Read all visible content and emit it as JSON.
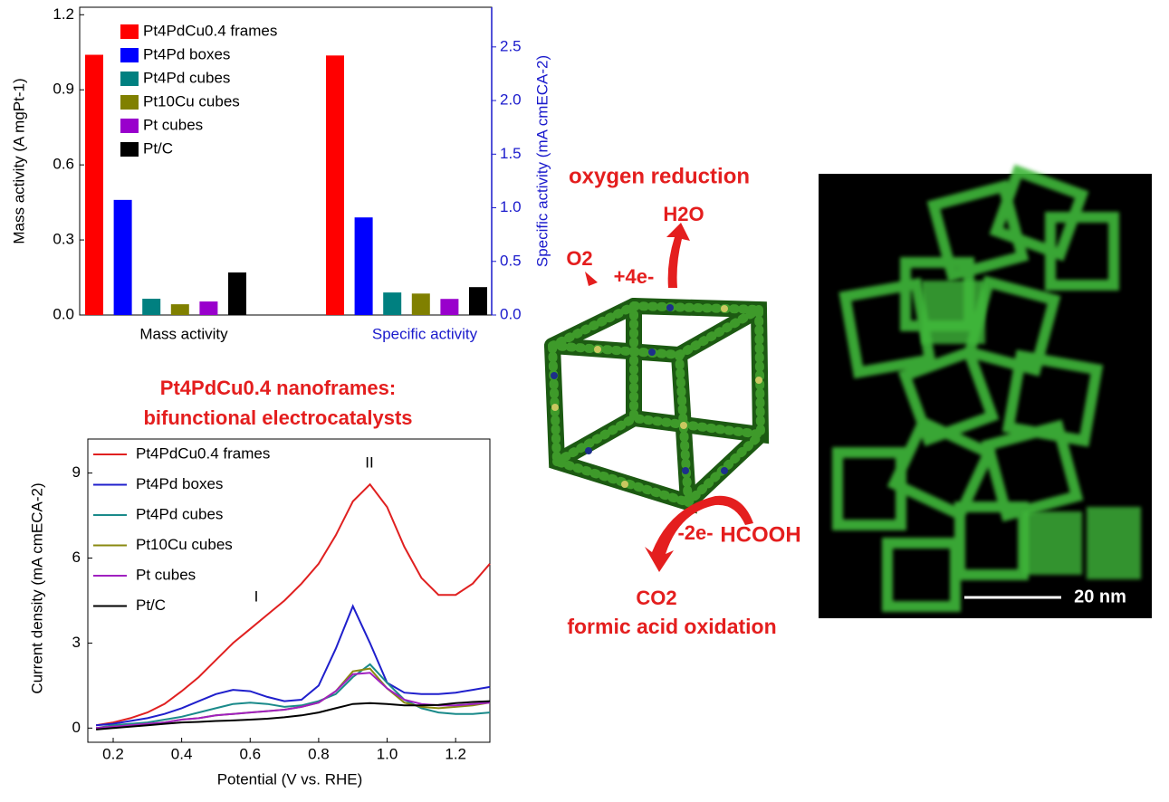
{
  "chart_data": [
    {
      "type": "bar",
      "categories": [
        "Mass activity",
        "Specific activity"
      ],
      "category_axes": [
        "y",
        "y2"
      ],
      "ylabel": "Mass activity (A mgPt-1)",
      "y2label": "Specific activity (mA cmECA-2)",
      "ylim": [
        0,
        1.23
      ],
      "yticks": [
        {
          "value": 0,
          "label": "0.0"
        },
        0.3,
        0.6,
        0.9,
        1.2
      ],
      "y2lim": [
        0,
        2.87
      ],
      "y2ticks": [
        {
          "value": 0,
          "label": "0.0"
        },
        0.5,
        {
          "value": 1,
          "label": "1.0"
        },
        1.5,
        {
          "value": 2,
          "label": "2.0"
        },
        2.5
      ],
      "y2color": "#1a1acc",
      "grid": false,
      "legend": "upper-left",
      "series": [
        {
          "name": "Pt4PdCu0.4 frames",
          "color": "#ff0000",
          "values": [
            1.04,
            2.42
          ]
        },
        {
          "name": "Pt4Pd boxes",
          "color": "#0000ff",
          "values": [
            0.46,
            0.91
          ]
        },
        {
          "name": "Pt4Pd cubes",
          "color": "#008080",
          "values": [
            0.065,
            0.21
          ]
        },
        {
          "name": "Pt10Cu cubes",
          "color": "#808000",
          "values": [
            0.043,
            0.2
          ]
        },
        {
          "name": "Pt cubes",
          "color": "#9900cc",
          "values": [
            0.054,
            0.15
          ]
        },
        {
          "name": "Pt/C",
          "color": "#000000",
          "values": [
            0.17,
            0.26
          ]
        }
      ]
    },
    {
      "type": "line",
      "xlabel": "Potential (V vs. RHE)",
      "ylabel": "Current density (mA cmECA-2)",
      "xlim": [
        0.126,
        1.3
      ],
      "ylim": [
        -0.5,
        10.2
      ],
      "xticks": [
        0.2,
        0.4,
        0.6,
        0.8,
        {
          "value": 1,
          "label": "1.0"
        },
        1.2
      ],
      "yticks": [
        0,
        3,
        6,
        9
      ],
      "grid": false,
      "legend": "upper-left",
      "annotations": [
        "I",
        "II"
      ],
      "x": [
        0.15,
        0.2,
        0.25,
        0.3,
        0.35,
        0.4,
        0.45,
        0.5,
        0.55,
        0.6,
        0.65,
        0.7,
        0.75,
        0.8,
        0.85,
        0.9,
        0.95,
        1.0,
        1.05,
        1.1,
        1.15,
        1.2,
        1.25,
        1.3
      ],
      "series": [
        {
          "name": "Pt4PdCu0.4 frames",
          "color": "#e02020",
          "values": [
            0.1,
            0.2,
            0.35,
            0.55,
            0.85,
            1.3,
            1.8,
            2.4,
            3.0,
            3.5,
            4.0,
            4.5,
            5.1,
            5.8,
            6.8,
            8.0,
            8.6,
            7.8,
            6.4,
            5.3,
            4.7,
            4.7,
            5.1,
            5.8
          ]
        },
        {
          "name": "Pt4Pd boxes",
          "color": "#1f1fcc",
          "values": [
            0.1,
            0.15,
            0.25,
            0.35,
            0.5,
            0.7,
            0.95,
            1.2,
            1.35,
            1.3,
            1.1,
            0.95,
            1.0,
            1.5,
            2.8,
            4.3,
            3.0,
            1.6,
            1.25,
            1.2,
            1.2,
            1.25,
            1.35,
            1.45
          ]
        },
        {
          "name": "Pt4Pd cubes",
          "color": "#1a8a8a",
          "values": [
            0,
            0.1,
            0.15,
            0.2,
            0.3,
            0.4,
            0.55,
            0.7,
            0.85,
            0.9,
            0.85,
            0.75,
            0.8,
            0.95,
            1.2,
            1.8,
            2.25,
            1.6,
            1.0,
            0.7,
            0.55,
            0.5,
            0.5,
            0.55
          ]
        },
        {
          "name": "Pt10Cu cubes",
          "color": "#8a8a10",
          "values": [
            0,
            0.05,
            0.1,
            0.15,
            0.2,
            0.3,
            0.35,
            0.45,
            0.5,
            0.55,
            0.6,
            0.65,
            0.75,
            0.9,
            1.3,
            2.0,
            2.1,
            1.4,
            0.9,
            0.75,
            0.7,
            0.75,
            0.8,
            0.9
          ]
        },
        {
          "name": "Pt cubes",
          "color": "#a020c0",
          "values": [
            0,
            0.05,
            0.1,
            0.15,
            0.2,
            0.3,
            0.35,
            0.45,
            0.5,
            0.55,
            0.6,
            0.65,
            0.75,
            0.9,
            1.3,
            1.9,
            1.95,
            1.4,
            1.0,
            0.85,
            0.8,
            0.8,
            0.85,
            0.9
          ]
        },
        {
          "name": "Pt/C",
          "color": "#000000",
          "values": [
            -0.05,
            0,
            0.05,
            0.1,
            0.15,
            0.2,
            0.22,
            0.25,
            0.27,
            0.3,
            0.33,
            0.38,
            0.45,
            0.55,
            0.7,
            0.85,
            0.88,
            0.85,
            0.8,
            0.8,
            0.82,
            0.88,
            0.92,
            0.95
          ]
        }
      ]
    }
  ],
  "figure": {
    "caption": [
      "Pt4PdCu0.4 nanoframes:",
      "bifunctional electrocatalysts"
    ],
    "diagram": {
      "title": "oxygen reduction",
      "reactant_orr": "O2",
      "electrons_orr": "+4e-",
      "product_orr": "H2O",
      "electrons_fao": "-2e-",
      "reactant_fao": "HCOOH",
      "product_fao": "CO2",
      "subtitle": "formic acid oxidation"
    },
    "micrograph": {
      "scale_bar": "20 nm"
    }
  }
}
